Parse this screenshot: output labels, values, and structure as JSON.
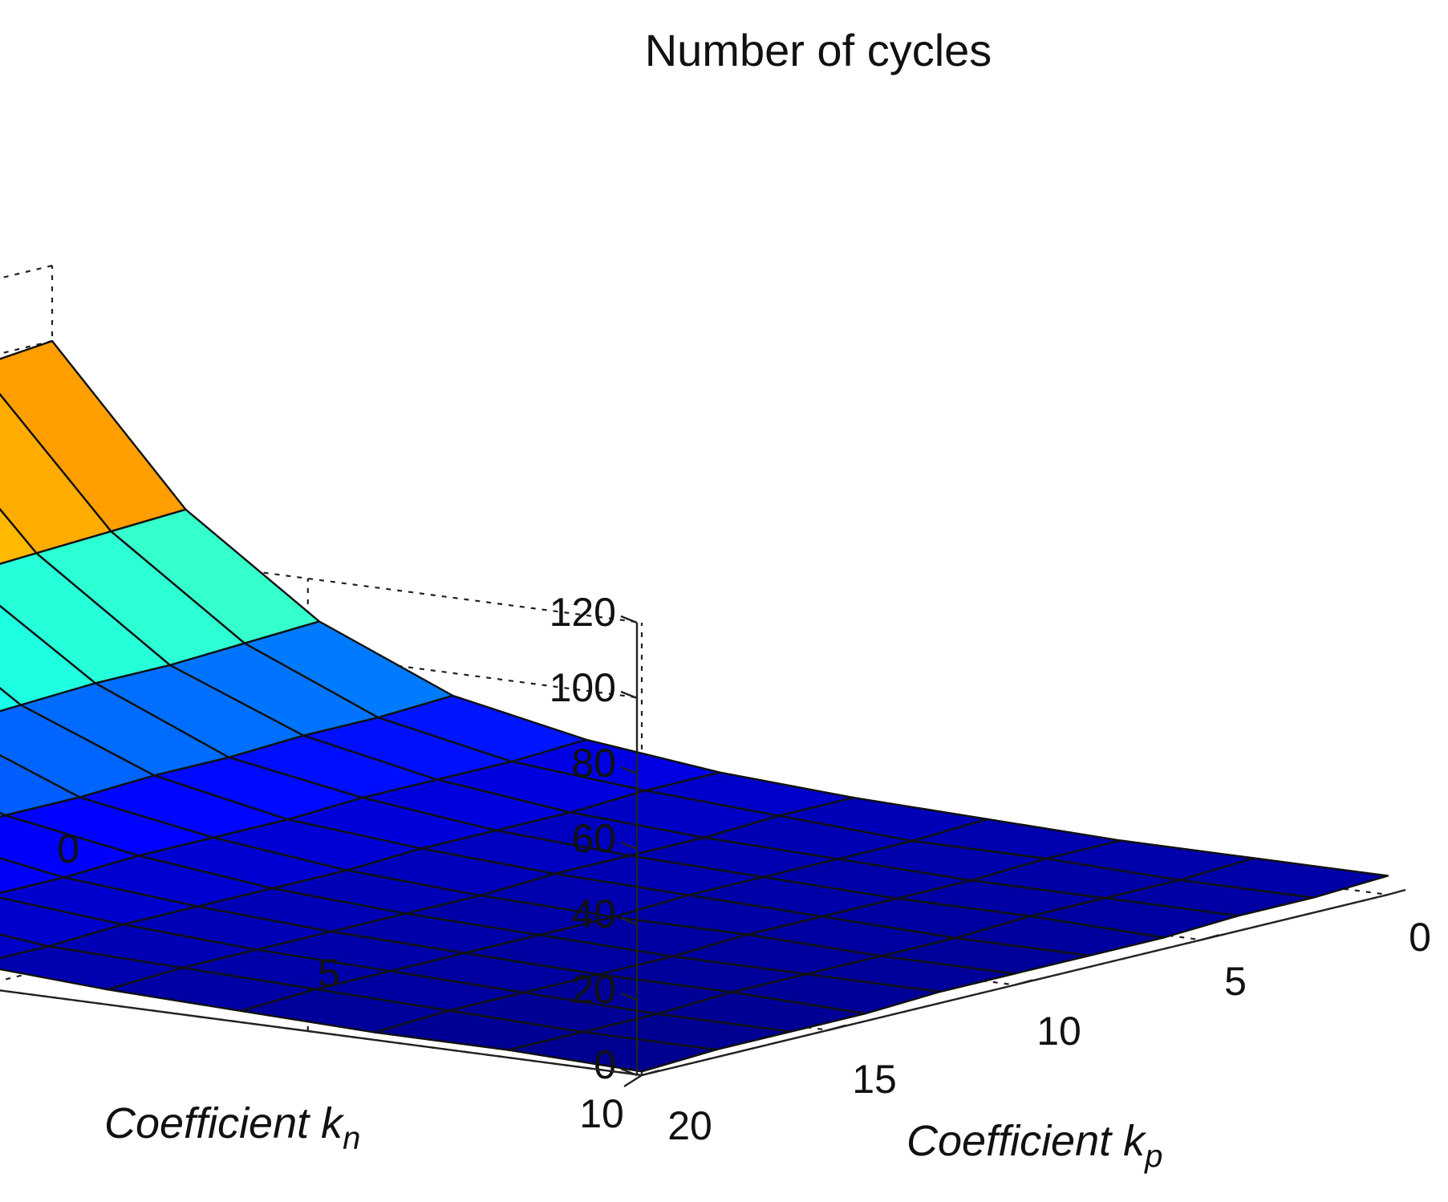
{
  "chart_data": {
    "type": "surface3d",
    "title": "Number of cycles",
    "xlabel": "Coefficient k",
    "xlabel_sub": "p",
    "ylabel": "Coefficient k",
    "ylabel_sub": "n",
    "zlabel": "",
    "x_ticks": [
      "0",
      "5",
      "10",
      "15",
      "20"
    ],
    "y_ticks": [
      "0",
      "5",
      "10"
    ],
    "z_ticks": [
      "0",
      "20",
      "40",
      "60",
      "80",
      "100",
      "120"
    ],
    "xlim": [
      0,
      20
    ],
    "ylim": [
      0,
      10
    ],
    "zlim": [
      0,
      120
    ],
    "grid": true,
    "colormap": "jet",
    "kp_values": [
      0,
      2,
      4,
      6,
      8,
      10,
      12,
      14,
      16,
      18,
      20
    ],
    "kn_values": [
      0,
      1,
      2,
      3,
      4,
      5,
      6,
      7,
      8,
      9,
      10
    ],
    "z_by_kn": [
      [
        100,
        98,
        96,
        94,
        92,
        90,
        88,
        86,
        84,
        82,
        80
      ],
      [
        60,
        59,
        58,
        57,
        56,
        55,
        54,
        53,
        52,
        51,
        50
      ],
      [
        35,
        34,
        33,
        33,
        32,
        31,
        30,
        29,
        28,
        27,
        26
      ],
      [
        20,
        19,
        19,
        18,
        18,
        17,
        17,
        16,
        16,
        15,
        15
      ],
      [
        13,
        12,
        12,
        12,
        11,
        11,
        11,
        10,
        10,
        10,
        9
      ],
      [
        9,
        9,
        8,
        8,
        8,
        7,
        7,
        7,
        7,
        6,
        6
      ],
      [
        7,
        7,
        6,
        6,
        6,
        5,
        5,
        5,
        5,
        5,
        4
      ],
      [
        6,
        5,
        5,
        5,
        5,
        4,
        4,
        4,
        4,
        4,
        3
      ],
      [
        5,
        5,
        4,
        4,
        4,
        4,
        3,
        3,
        3,
        3,
        2
      ],
      [
        5,
        4,
        4,
        4,
        3,
        3,
        3,
        3,
        2,
        2,
        2
      ],
      [
        5,
        4,
        4,
        3,
        3,
        3,
        3,
        2,
        2,
        2,
        1
      ]
    ]
  }
}
